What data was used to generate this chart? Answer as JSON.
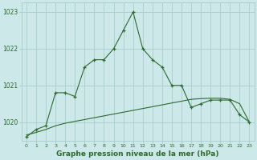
{
  "hours": [
    0,
    1,
    2,
    3,
    4,
    5,
    6,
    7,
    8,
    9,
    10,
    11,
    12,
    13,
    14,
    15,
    16,
    17,
    18,
    19,
    20,
    21,
    22,
    23
  ],
  "pressure": [
    1019.6,
    1019.8,
    1019.9,
    1020.8,
    1020.8,
    1020.7,
    1021.5,
    1021.7,
    1021.7,
    1022.0,
    1022.5,
    1023.0,
    1022.0,
    1021.7,
    1021.5,
    1021.0,
    1021.0,
    1020.4,
    1020.5,
    1020.6,
    1020.6,
    1020.6,
    1020.2,
    1020.0
  ],
  "trend": [
    1019.65,
    1019.72,
    1019.8,
    1019.9,
    1019.97,
    1020.02,
    1020.07,
    1020.12,
    1020.17,
    1020.22,
    1020.27,
    1020.32,
    1020.37,
    1020.42,
    1020.47,
    1020.52,
    1020.57,
    1020.62,
    1020.64,
    1020.65,
    1020.65,
    1020.62,
    1020.5,
    1020.0
  ],
  "line_color": "#2d6a2d",
  "bg_color": "#cce8e8",
  "plot_bg_color": "#cce8e8",
  "grid_color": "#aacccc",
  "xlabel": "Graphe pression niveau de la mer (hPa)",
  "xlabel_color": "#2d6a2d",
  "ylim": [
    1019.5,
    1023.25
  ],
  "xlim": [
    -0.5,
    23.5
  ],
  "yticks": [
    1020,
    1021,
    1022,
    1023
  ],
  "xticks": [
    0,
    1,
    2,
    3,
    4,
    5,
    6,
    7,
    8,
    9,
    10,
    11,
    12,
    13,
    14,
    15,
    16,
    17,
    18,
    19,
    20,
    21,
    22,
    23
  ],
  "tick_label_color": "#2d6a2d",
  "fig_width": 3.2,
  "fig_height": 2.0,
  "dpi": 100
}
